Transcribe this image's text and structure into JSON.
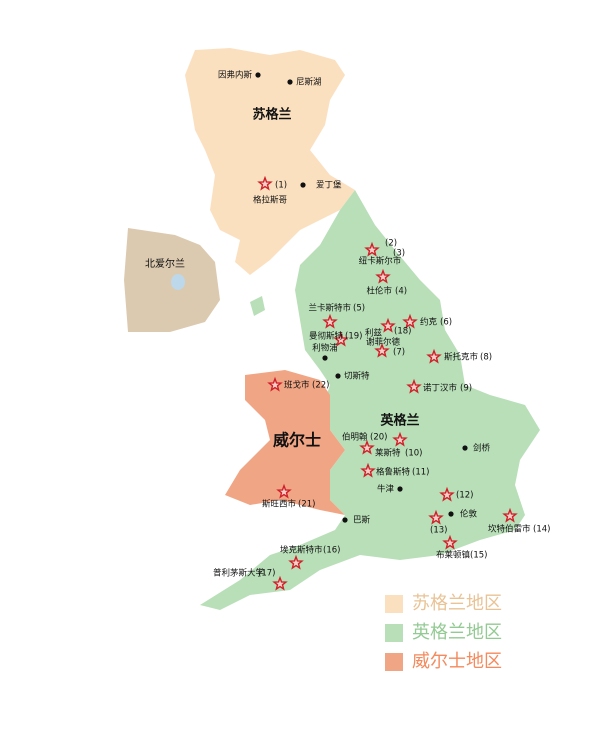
{
  "regions": [
    {
      "label": "苏格兰"
    },
    {
      "label": "英格兰"
    },
    {
      "label": "威尔士"
    },
    {
      "label": "北爱尔兰"
    }
  ],
  "places": [
    {
      "label": "因弗内斯"
    },
    {
      "label": "尼斯湖"
    },
    {
      "label": "爱丁堡"
    },
    {
      "label": "利物浦"
    },
    {
      "label": "切斯特"
    },
    {
      "label": "剑桥"
    },
    {
      "label": "牛津"
    },
    {
      "label": "伦敦"
    },
    {
      "label": "巴斯"
    }
  ],
  "sites": [
    {
      "num": "(1)",
      "name": "格拉斯哥"
    },
    {
      "num": "(2)"
    },
    {
      "num": "(3)",
      "name": "纽卡斯尔市"
    },
    {
      "num": "(4)",
      "name": "杜伦市"
    },
    {
      "num": "(5)",
      "name": "兰卡斯特市"
    },
    {
      "num": "(6)",
      "name": "约克"
    },
    {
      "num": "(7)",
      "name": "谢菲尔德"
    },
    {
      "num": "(8)",
      "name": "斯托克市"
    },
    {
      "num": "(9)",
      "name": "诺丁汉市"
    },
    {
      "num": "(10)",
      "name": "莱斯特"
    },
    {
      "num": "(11)",
      "name": "格鲁斯特"
    },
    {
      "num": "(12)"
    },
    {
      "num": "(13)"
    },
    {
      "num": "(14)",
      "name": "坎特伯雷市"
    },
    {
      "num": "(15)",
      "name": "布莱顿镇"
    },
    {
      "num": "(16)",
      "name": "埃克斯特市"
    },
    {
      "num": "(17)",
      "name": "普利茅斯大学"
    },
    {
      "num": "(18)",
      "name": "利兹"
    },
    {
      "num": "(19)",
      "name": "曼彻斯特"
    },
    {
      "num": "(20)",
      "name": "伯明翰"
    },
    {
      "num": "(21)",
      "name": "斯旺西市"
    },
    {
      "num": "(22)",
      "name": "班戈市"
    }
  ],
  "legend": [
    {
      "label": "苏格兰地区",
      "color": "#fbe0c0"
    },
    {
      "label": "英格兰地区",
      "color": "#b8dfb8"
    },
    {
      "label": "威尔士地区",
      "color": "#f0a585"
    }
  ]
}
